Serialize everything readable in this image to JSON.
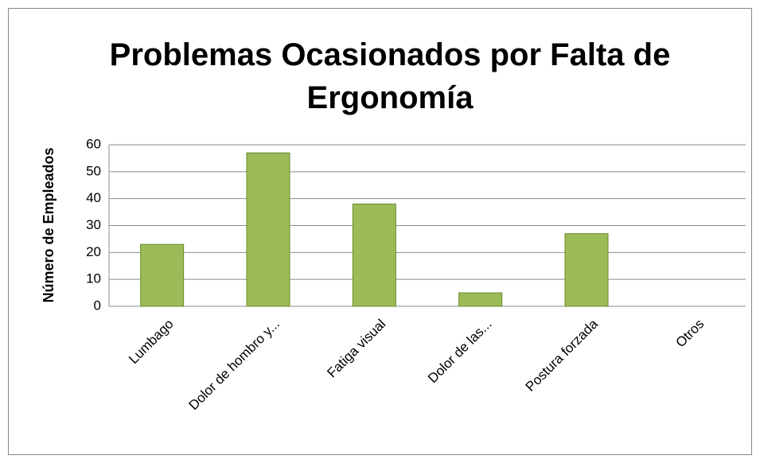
{
  "chart_data": {
    "type": "bar",
    "title": "Problemas Ocasionados por Falta de Ergonomía",
    "y_label": "Número de Empleados",
    "categories": [
      "Lumbago",
      "Dolor de hombro y...",
      "Fatiga visual",
      "Dolor de las...",
      "Postura forzada",
      "Otros"
    ],
    "values": [
      23,
      57,
      38,
      5,
      27,
      0
    ],
    "color": "#9bbb59",
    "ylim": [
      0,
      60
    ],
    "yticks": [
      0,
      10,
      20,
      30,
      40,
      50,
      60
    ],
    "grid": true
  }
}
